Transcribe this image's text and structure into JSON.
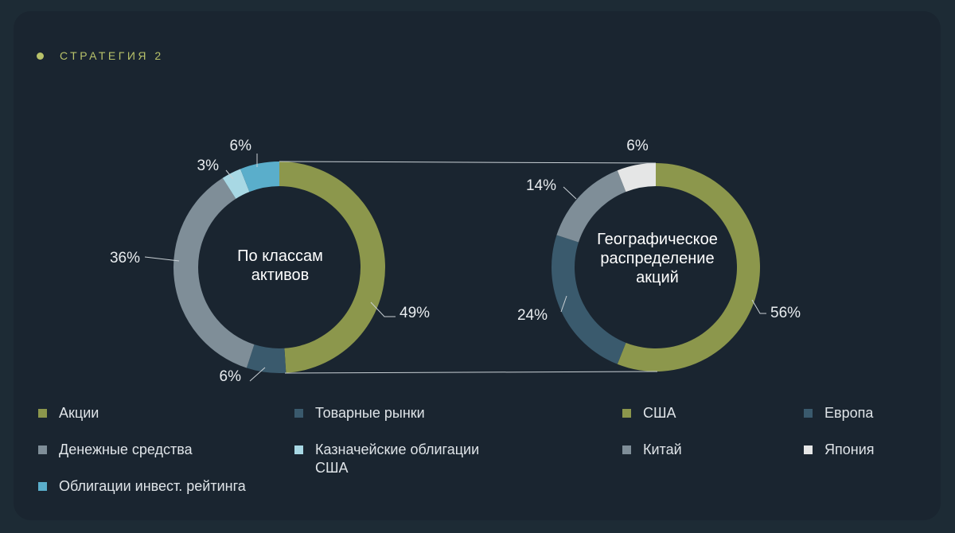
{
  "header": {
    "label": "СТРАТЕГИЯ 2",
    "dot_color": "#b8c26a",
    "label_color": "#b8c26a"
  },
  "chart_data": [
    {
      "type": "pie",
      "variant": "donut",
      "center_label": [
        "По классам",
        "активов"
      ],
      "slices": [
        {
          "label": "Акции",
          "value": 49,
          "display": "49%",
          "color": "#8c974c"
        },
        {
          "label": "Товарные рынки",
          "value": 6,
          "display": "6%",
          "color": "#3a5a6d"
        },
        {
          "label": "Денежные средства",
          "value": 36,
          "display": "36%",
          "color": "#7f8e98"
        },
        {
          "label": "Казначейские облигации США",
          "value": 3,
          "display": "3%",
          "color": "#a8d8e4"
        },
        {
          "label": "Облигации инвест. рейтинга",
          "value": 6,
          "display": "6%",
          "color": "#5aaecb"
        }
      ]
    },
    {
      "type": "pie",
      "variant": "donut",
      "center_label": [
        "Географическое",
        "распределение",
        "акций"
      ],
      "slices": [
        {
          "label": "США",
          "value": 56,
          "display": "56%",
          "color": "#8c974c"
        },
        {
          "label": "Европа",
          "value": 24,
          "display": "24%",
          "color": "#3a5a6d"
        },
        {
          "label": "Китай",
          "value": 14,
          "display": "14%",
          "color": "#7f8e98"
        },
        {
          "label": "Япония",
          "value": 6,
          "display": "6%",
          "color": "#e5e6e6"
        }
      ]
    }
  ],
  "legend_left": [
    {
      "label": "Акции",
      "color": "#8c974c"
    },
    {
      "label": "Товарные рынки",
      "color": "#3a5a6d"
    },
    {
      "label": "Денежные средства",
      "color": "#7f8e98"
    },
    {
      "label": "Казначейские облигации США",
      "color": "#a8d8e4"
    },
    {
      "label": "Облигации инвест. рейтинга",
      "color": "#5aaecb"
    }
  ],
  "legend_right": [
    {
      "label": "США",
      "color": "#8c974c"
    },
    {
      "label": "Европа",
      "color": "#3a5a6d"
    },
    {
      "label": "Китай",
      "color": "#7f8e98"
    },
    {
      "label": "Япония",
      "color": "#e5e6e6"
    }
  ]
}
